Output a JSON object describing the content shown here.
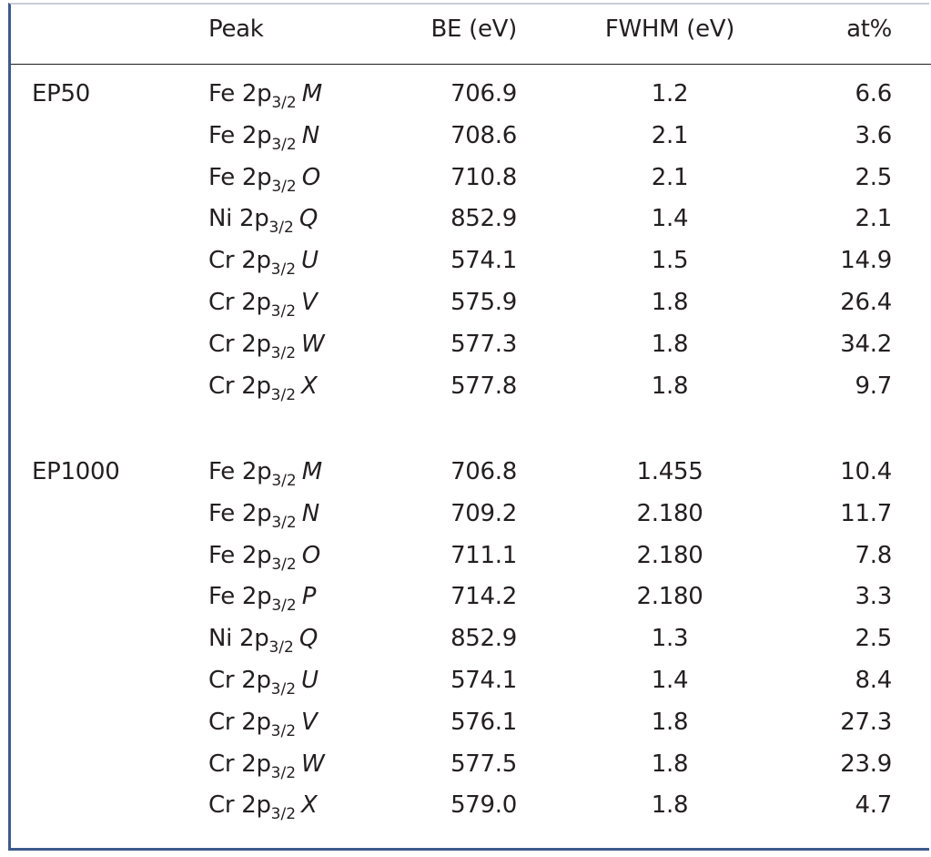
{
  "headers": {
    "sample": "",
    "peak": "Peak",
    "be": "BE (eV)",
    "fwhm": "FWHM (eV)",
    "at": "at%"
  },
  "groups": [
    {
      "sample": "EP50",
      "rows": [
        {
          "element": "Fe 2p",
          "sub": "3/2",
          "comp": "M",
          "be": "706.9",
          "fwhm": "1.2",
          "at": "6.6"
        },
        {
          "element": "Fe 2p",
          "sub": "3/2",
          "comp": "N",
          "be": "708.6",
          "fwhm": "2.1",
          "at": "3.6"
        },
        {
          "element": "Fe 2p",
          "sub": "3/2",
          "comp": "O",
          "be": "710.8",
          "fwhm": "2.1",
          "at": "2.5"
        },
        {
          "element": "Ni 2p",
          "sub": "3/2",
          "comp": "Q",
          "be": "852.9",
          "fwhm": "1.4",
          "at": "2.1"
        },
        {
          "element": "Cr 2p",
          "sub": "3/2",
          "comp": "U",
          "be": "574.1",
          "fwhm": "1.5",
          "at": "14.9"
        },
        {
          "element": "Cr 2p",
          "sub": "3/2",
          "comp": "V",
          "be": "575.9",
          "fwhm": "1.8",
          "at": "26.4"
        },
        {
          "element": "Cr 2p",
          "sub": "3/2",
          "comp": "W",
          "be": "577.3",
          "fwhm": "1.8",
          "at": "34.2"
        },
        {
          "element": "Cr 2p",
          "sub": "3/2",
          "comp": "X",
          "be": "577.8",
          "fwhm": "1.8",
          "at": "9.7"
        }
      ]
    },
    {
      "sample": "EP1000",
      "rows": [
        {
          "element": "Fe 2p",
          "sub": "3/2",
          "comp": "M",
          "be": "706.8",
          "fwhm": "1.455",
          "at": "10.4"
        },
        {
          "element": "Fe 2p",
          "sub": "3/2",
          "comp": "N",
          "be": "709.2",
          "fwhm": "2.180",
          "at": "11.7"
        },
        {
          "element": "Fe 2p",
          "sub": "3/2",
          "comp": "O",
          "be": "711.1",
          "fwhm": "2.180",
          "at": "7.8"
        },
        {
          "element": "Fe 2p",
          "sub": "3/2",
          "comp": "P",
          "be": "714.2",
          "fwhm": "2.180",
          "at": "3.3"
        },
        {
          "element": "Ni 2p",
          "sub": "3/2",
          "comp": "Q",
          "be": "852.9",
          "fwhm": "1.3",
          "at": "2.5"
        },
        {
          "element": "Cr 2p",
          "sub": "3/2",
          "comp": "U",
          "be": "574.1",
          "fwhm": "1.4",
          "at": "8.4"
        },
        {
          "element": "Cr 2p",
          "sub": "3/2",
          "comp": "V",
          "be": "576.1",
          "fwhm": "1.8",
          "at": "27.3"
        },
        {
          "element": "Cr 2p",
          "sub": "3/2",
          "comp": "W",
          "be": "577.5",
          "fwhm": "1.8",
          "at": "23.9"
        },
        {
          "element": "Cr 2p",
          "sub": "3/2",
          "comp": "X",
          "be": "579.0",
          "fwhm": "1.8",
          "at": "4.7"
        }
      ]
    }
  ]
}
